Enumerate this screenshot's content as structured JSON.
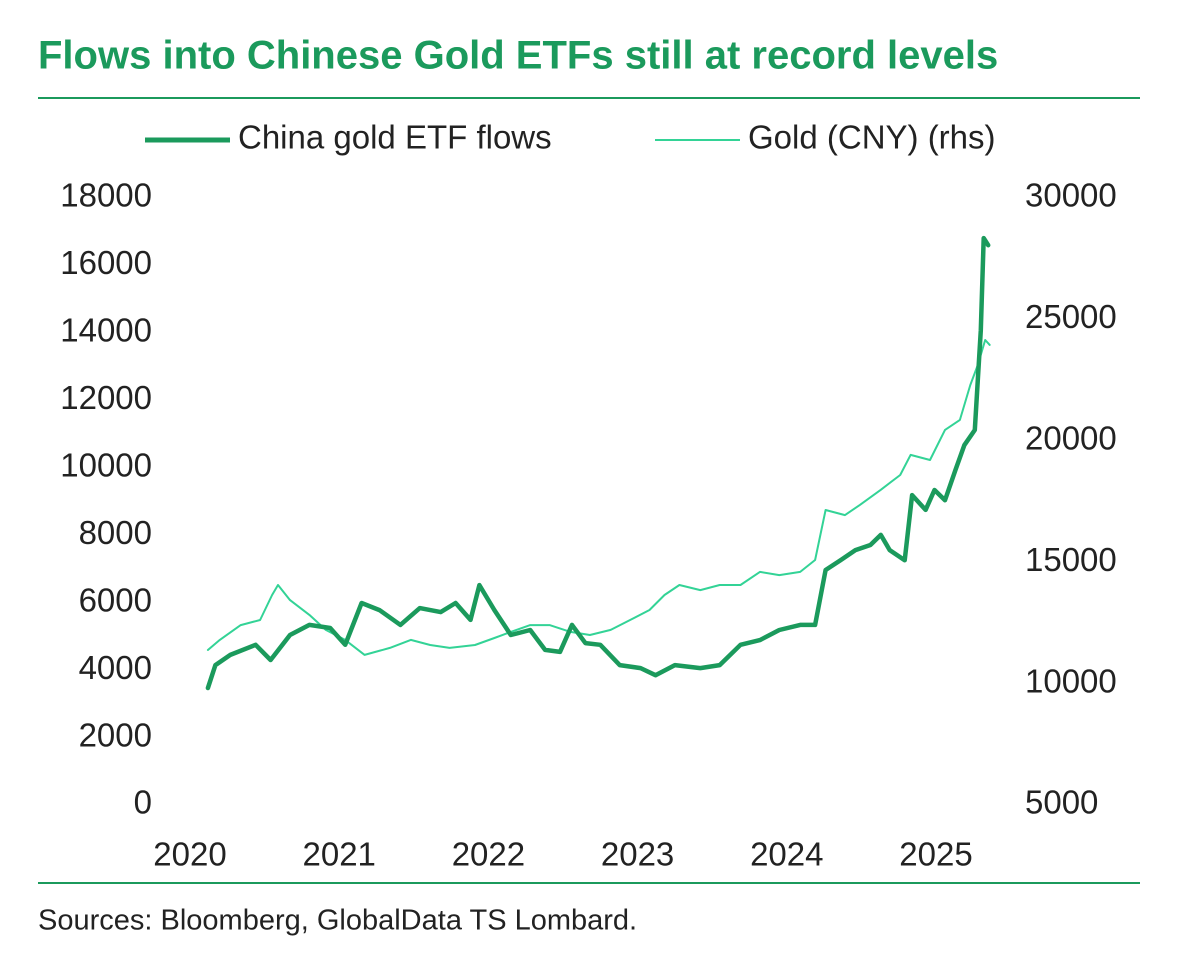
{
  "chart_data": {
    "type": "line",
    "title": "Flows into Chinese Gold ETFs still at record levels",
    "source": "Sources: Bloomberg, GlobalData TS Lombard.",
    "legend": "top",
    "xlim": [
      2020,
      2025.5
    ],
    "xticks": [
      2020,
      2021,
      2022,
      2023,
      2024,
      2025
    ],
    "ylim": [
      0,
      18000
    ],
    "yticks": [
      0,
      2000,
      4000,
      6000,
      8000,
      10000,
      12000,
      14000,
      16000,
      18000
    ],
    "y2lim": [
      5000,
      30000
    ],
    "y2ticks": [
      5000,
      10000,
      15000,
      20000,
      25000,
      30000
    ],
    "series": [
      {
        "name": "China gold ETF flows",
        "color": "#1b9a5c",
        "axis": "y",
        "x": [
          2020.12,
          2020.17,
          2020.27,
          2020.44,
          2020.54,
          2020.67,
          2020.8,
          2020.94,
          2021.04,
          2021.15,
          2021.27,
          2021.41,
          2021.54,
          2021.68,
          2021.78,
          2021.88,
          2021.94,
          2022.04,
          2022.15,
          2022.28,
          2022.38,
          2022.48,
          2022.56,
          2022.65,
          2022.75,
          2022.88,
          2023.02,
          2023.12,
          2023.25,
          2023.42,
          2023.55,
          2023.69,
          2023.82,
          2023.95,
          2024.09,
          2024.19,
          2024.26,
          2024.36,
          2024.46,
          2024.56,
          2024.63,
          2024.69,
          2024.79,
          2024.84,
          2024.93,
          2024.99,
          2025.06,
          2025.13,
          2025.19,
          2025.26,
          2025.3,
          2025.32,
          2025.35
        ],
        "values": [
          3470,
          4150,
          4450,
          4750,
          4300,
          5040,
          5340,
          5250,
          4750,
          5990,
          5780,
          5340,
          5840,
          5720,
          5990,
          5490,
          6520,
          5780,
          5040,
          5190,
          4600,
          4540,
          5340,
          4800,
          4750,
          4150,
          4060,
          3850,
          4150,
          4060,
          4150,
          4750,
          4890,
          5190,
          5340,
          5340,
          6970,
          7260,
          7560,
          7710,
          8010,
          7560,
          7260,
          9190,
          8750,
          9340,
          9040,
          9930,
          10670,
          11120,
          14080,
          16810,
          16600
        ]
      },
      {
        "name": "Gold (CNY) (rhs)",
        "color": "#33d396",
        "axis": "y2",
        "x": [
          2020.12,
          2020.2,
          2020.34,
          2020.47,
          2020.55,
          2020.59,
          2020.67,
          2020.8,
          2020.91,
          2021.04,
          2021.17,
          2021.34,
          2021.48,
          2021.61,
          2021.74,
          2021.91,
          2022.04,
          2022.15,
          2022.28,
          2022.41,
          2022.55,
          2022.68,
          2022.82,
          2022.95,
          2023.08,
          2023.18,
          2023.28,
          2023.42,
          2023.55,
          2023.69,
          2023.82,
          2023.95,
          2024.09,
          2024.19,
          2024.26,
          2024.39,
          2024.49,
          2024.63,
          2024.76,
          2024.83,
          2024.96,
          2025.06,
          2025.16,
          2025.23,
          2025.28,
          2025.33,
          2025.36
        ],
        "values": [
          11385,
          11800,
          12410,
          12620,
          13650,
          14060,
          13440,
          12830,
          12210,
          11800,
          11180,
          11470,
          11800,
          11590,
          11470,
          11590,
          11880,
          12130,
          12410,
          12410,
          12130,
          12000,
          12210,
          12620,
          13030,
          13650,
          14060,
          13850,
          14060,
          14060,
          14600,
          14470,
          14600,
          15090,
          17150,
          16940,
          17360,
          17980,
          18590,
          19420,
          19210,
          20450,
          20860,
          22300,
          23120,
          24150,
          23950
        ]
      }
    ]
  }
}
